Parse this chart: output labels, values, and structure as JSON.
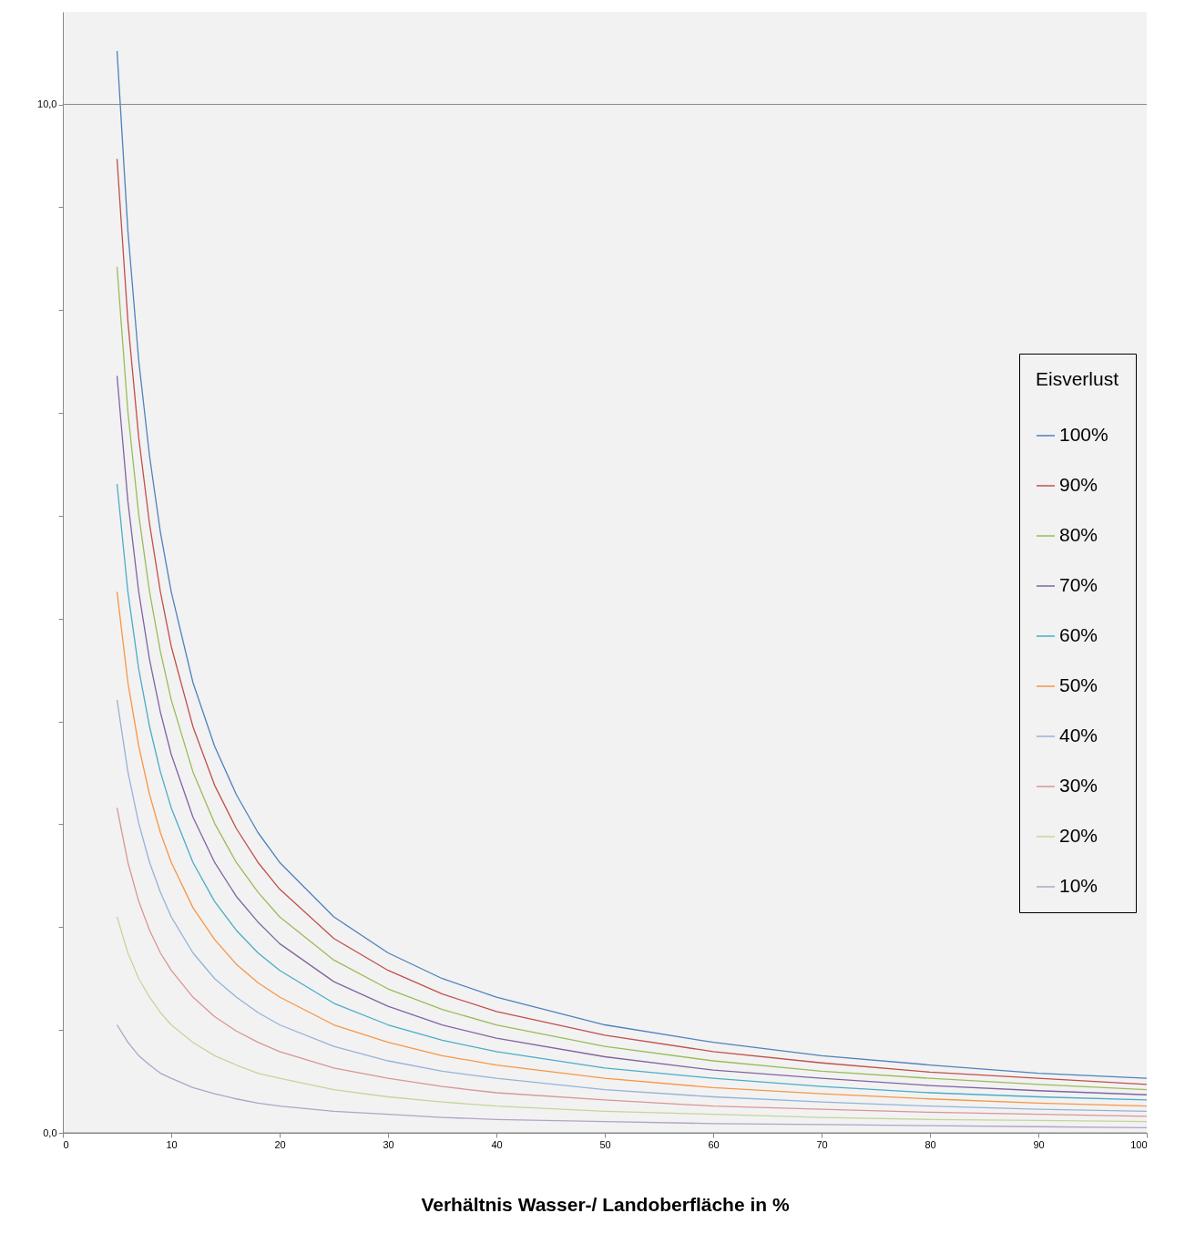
{
  "chart_data": {
    "type": "line",
    "xlabel": "Verhältnis Wasser-/ Landoberfläche in %",
    "legend_title": "Eisverlust",
    "legend": "right",
    "grid": "y",
    "marker": "none",
    "line_style": "solid",
    "x": [
      5,
      6,
      7,
      8,
      9,
      10,
      12,
      14,
      16,
      18,
      20,
      25,
      30,
      35,
      40,
      50,
      60,
      70,
      80,
      90,
      100
    ],
    "xlim": [
      0,
      100
    ],
    "xticks": [
      0,
      10,
      20,
      30,
      40,
      50,
      60,
      70,
      80,
      90,
      100
    ],
    "ylim": [
      0,
      10.9
    ],
    "yticks": [
      {
        "value": 0,
        "label": "0,0"
      },
      {
        "value": 1,
        "label": null
      },
      {
        "value": 2,
        "label": null
      },
      {
        "value": 3,
        "label": null
      },
      {
        "value": 4,
        "label": null
      },
      {
        "value": 5,
        "label": null
      },
      {
        "value": 6,
        "label": null
      },
      {
        "value": 7,
        "label": null
      },
      {
        "value": 8,
        "label": null
      },
      {
        "value": 9,
        "label": null
      },
      {
        "value": 10,
        "label": "10,0"
      }
    ],
    "series": [
      {
        "name": "100%",
        "color": "#4f81bd",
        "values": [
          10.52,
          8.77,
          7.51,
          6.58,
          5.84,
          5.26,
          4.38,
          3.76,
          3.29,
          2.92,
          2.63,
          2.1,
          1.75,
          1.5,
          1.32,
          1.05,
          0.88,
          0.75,
          0.66,
          0.58,
          0.53
        ]
      },
      {
        "name": "90%",
        "color": "#c0504d",
        "values": [
          9.47,
          7.89,
          6.76,
          5.92,
          5.26,
          4.73,
          3.95,
          3.38,
          2.96,
          2.63,
          2.37,
          1.89,
          1.58,
          1.35,
          1.18,
          0.95,
          0.79,
          0.68,
          0.59,
          0.53,
          0.47
        ]
      },
      {
        "name": "80%",
        "color": "#9bbb59",
        "values": [
          8.42,
          7.01,
          6.01,
          5.26,
          4.68,
          4.21,
          3.51,
          3.01,
          2.63,
          2.34,
          2.1,
          1.68,
          1.4,
          1.2,
          1.05,
          0.84,
          0.7,
          0.6,
          0.53,
          0.47,
          0.42
        ]
      },
      {
        "name": "70%",
        "color": "#8064a2",
        "values": [
          7.36,
          6.14,
          5.26,
          4.6,
          4.09,
          3.68,
          3.07,
          2.63,
          2.3,
          2.05,
          1.84,
          1.47,
          1.23,
          1.05,
          0.92,
          0.74,
          0.61,
          0.53,
          0.46,
          0.41,
          0.37
        ]
      },
      {
        "name": "60%",
        "color": "#4bacc6",
        "values": [
          6.31,
          5.26,
          4.51,
          3.95,
          3.51,
          3.16,
          2.63,
          2.25,
          1.97,
          1.75,
          1.58,
          1.26,
          1.05,
          0.9,
          0.79,
          0.63,
          0.53,
          0.45,
          0.39,
          0.35,
          0.32
        ]
      },
      {
        "name": "50%",
        "color": "#f79646",
        "values": [
          5.26,
          4.38,
          3.76,
          3.29,
          2.92,
          2.63,
          2.19,
          1.88,
          1.64,
          1.46,
          1.32,
          1.05,
          0.88,
          0.75,
          0.66,
          0.53,
          0.44,
          0.38,
          0.33,
          0.29,
          0.26
        ]
      },
      {
        "name": "40%",
        "color": "#95b3d7",
        "values": [
          4.21,
          3.51,
          3.01,
          2.63,
          2.34,
          2.1,
          1.75,
          1.5,
          1.32,
          1.17,
          1.05,
          0.84,
          0.7,
          0.6,
          0.53,
          0.42,
          0.35,
          0.3,
          0.26,
          0.23,
          0.21
        ]
      },
      {
        "name": "30%",
        "color": "#d99694",
        "values": [
          3.16,
          2.63,
          2.25,
          1.97,
          1.75,
          1.58,
          1.32,
          1.13,
          0.99,
          0.88,
          0.79,
          0.63,
          0.53,
          0.45,
          0.39,
          0.32,
          0.26,
          0.23,
          0.2,
          0.18,
          0.16
        ]
      },
      {
        "name": "20%",
        "color": "#c3d69b",
        "values": [
          2.1,
          1.75,
          1.5,
          1.32,
          1.17,
          1.05,
          0.88,
          0.75,
          0.66,
          0.58,
          0.53,
          0.42,
          0.35,
          0.3,
          0.26,
          0.21,
          0.18,
          0.15,
          0.13,
          0.12,
          0.11
        ]
      },
      {
        "name": "10%",
        "color": "#b3a2c7",
        "values": [
          1.05,
          0.88,
          0.75,
          0.66,
          0.58,
          0.53,
          0.44,
          0.38,
          0.33,
          0.29,
          0.26,
          0.21,
          0.18,
          0.15,
          0.13,
          0.11,
          0.09,
          0.08,
          0.07,
          0.06,
          0.05
        ]
      }
    ]
  }
}
